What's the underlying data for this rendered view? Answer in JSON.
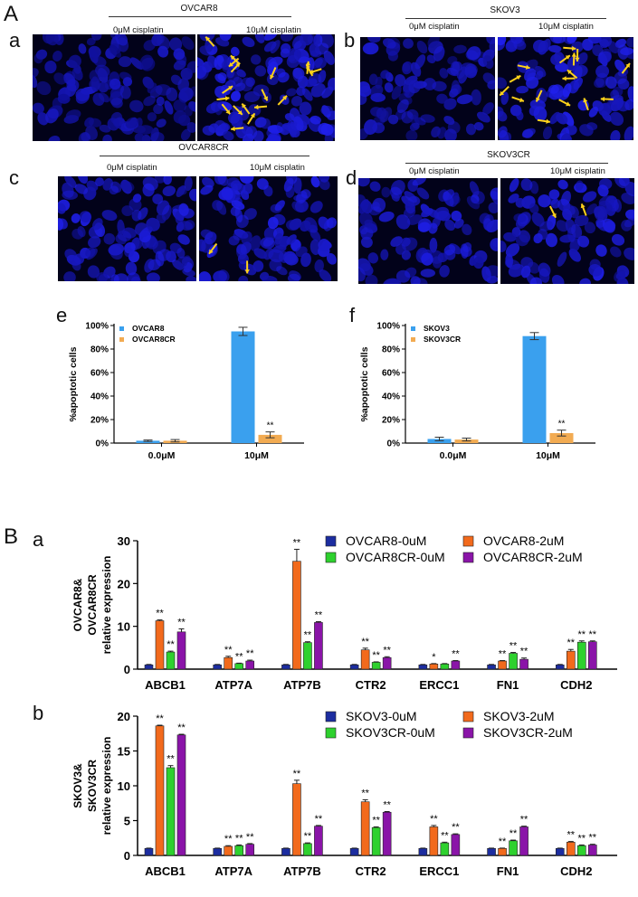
{
  "panel_labels": {
    "A": "A",
    "a": "a",
    "b": "b",
    "c": "c",
    "d": "d",
    "e": "e",
    "f": "f",
    "B": "B",
    "Ba": "a",
    "Bb": "b"
  },
  "micrographs": [
    {
      "id": "a",
      "title": "OVCAR8",
      "left_label": "0μM cisplatin",
      "right_label": "10μM cisplatin",
      "arrows_right": 18
    },
    {
      "id": "b",
      "title": "SKOV3",
      "left_label": "0μM cisplatin",
      "right_label": "10μM cisplatin",
      "arrows_right": 16
    },
    {
      "id": "c",
      "title": "OVCAR8CR",
      "left_label": "0μM cisplatin",
      "right_label": "10μM cisplatin",
      "arrows_right": 2
    },
    {
      "id": "d",
      "title": "SKOV3CR",
      "left_label": "0μM cisplatin",
      "right_label": "10μM cisplatin",
      "arrows_right": 2
    }
  ],
  "colors": {
    "nuclei": "#2a2ae0",
    "background": "#02021a",
    "arrow": "#ffd21a",
    "blue": "#3aa0ee",
    "orange": "#f2ab52",
    "navy": "#1c2da0",
    "deep_orange": "#f26a1c",
    "green": "#2ed12e",
    "purple": "#8a14a8"
  },
  "chart_data": [
    {
      "id": "e",
      "type": "bar",
      "categories": [
        "0.0μM",
        "10μM"
      ],
      "ylabel": "%apoptotic cells",
      "ylim": [
        0,
        100
      ],
      "yticks": [
        "0%",
        "20%",
        "40%",
        "60%",
        "80%",
        "100%"
      ],
      "series": [
        {
          "name": "OVCAR8",
          "values": [
            2,
            95
          ],
          "errors": [
            0.6,
            3.5
          ],
          "color": "#3aa0ee"
        },
        {
          "name": "OVCAR8CR",
          "values": [
            2,
            7
          ],
          "errors": [
            1,
            2.5
          ],
          "color": "#f2ab52"
        }
      ],
      "annotations": [
        {
          "category": 1,
          "series": 1,
          "text": "**"
        }
      ]
    },
    {
      "id": "f",
      "type": "bar",
      "categories": [
        "0.0μM",
        "10μM"
      ],
      "ylabel": "%apoptotic cells",
      "ylim": [
        0,
        100
      ],
      "yticks": [
        "0%",
        "20%",
        "40%",
        "60%",
        "80%",
        "100%"
      ],
      "series": [
        {
          "name": "SKOV3",
          "values": [
            3.5,
            91
          ],
          "errors": [
            1.5,
            3
          ],
          "color": "#3aa0ee"
        },
        {
          "name": "SKOV3CR",
          "values": [
            3,
            8.5
          ],
          "errors": [
            1.2,
            2.5
          ],
          "color": "#f2ab52"
        }
      ],
      "annotations": [
        {
          "category": 1,
          "series": 1,
          "text": "**"
        }
      ]
    },
    {
      "id": "Ba",
      "type": "bar",
      "categories": [
        "ABCB1",
        "ATP7A",
        "ATP7B",
        "CTR2",
        "ERCC1",
        "FN1",
        "CDH2"
      ],
      "ylabel": [
        "OVCAR8&",
        "OVCAR8CR",
        "relative expression"
      ],
      "ylim": [
        0,
        30
      ],
      "yticks": [
        "0",
        "10",
        "20",
        "30"
      ],
      "series": [
        {
          "name": "OVCAR8-0uM",
          "values": [
            1,
            1,
            1,
            1,
            1,
            1,
            1
          ],
          "errors": [
            0.1,
            0.1,
            0.1,
            0.1,
            0.1,
            0.1,
            0.1
          ],
          "color": "#1c2da0"
        },
        {
          "name": "OVCAR8-2uM",
          "values": [
            11.3,
            2.7,
            25.2,
            4.5,
            1.2,
            1.9,
            4.2
          ],
          "errors": [
            0.2,
            0.3,
            2.8,
            0.4,
            0.1,
            0.1,
            0.4
          ],
          "color": "#f26a1c"
        },
        {
          "name": "OVCAR8CR-0uM",
          "values": [
            4,
            1.3,
            6.2,
            1.6,
            1.2,
            3.7,
            6.3
          ],
          "errors": [
            0.2,
            0.1,
            0.2,
            0.1,
            0.1,
            0.2,
            0.3
          ],
          "color": "#2ed12e"
        },
        {
          "name": "OVCAR8CR-2uM",
          "values": [
            8.7,
            1.9,
            10.9,
            2.7,
            1.9,
            2.3,
            6.4
          ],
          "errors": [
            0.7,
            0.2,
            0.2,
            0.2,
            0.1,
            0.3,
            0.2
          ],
          "color": "#8a14a8"
        }
      ],
      "sig": [
        [
          "",
          "**",
          "**",
          "**"
        ],
        [
          "",
          "**",
          "**",
          "**"
        ],
        [
          "",
          "**",
          "**",
          "**"
        ],
        [
          "",
          "**",
          "**",
          "**"
        ],
        [
          "",
          "*",
          "",
          "**"
        ],
        [
          "",
          "**",
          "**",
          "**"
        ],
        [
          "",
          "**",
          "**",
          "**"
        ]
      ],
      "legend_order": [
        "OVCAR8-0uM",
        "OVCAR8-2uM",
        "OVCAR8CR-0uM",
        "OVCAR8CR-2uM"
      ]
    },
    {
      "id": "Bb",
      "type": "bar",
      "categories": [
        "ABCB1",
        "ATP7A",
        "ATP7B",
        "CTR2",
        "ERCC1",
        "FN1",
        "CDH2"
      ],
      "ylabel": [
        "SKOV3&",
        "SKOV3CR",
        "relative expression"
      ],
      "ylim": [
        0,
        20
      ],
      "yticks": [
        "0",
        "5",
        "10",
        "15",
        "20"
      ],
      "series": [
        {
          "name": "SKOV3-0uM",
          "values": [
            1,
            1,
            1,
            1,
            1,
            1,
            1
          ],
          "errors": [
            0.05,
            0.05,
            0.05,
            0.05,
            0.05,
            0.05,
            0.05
          ],
          "color": "#1c2da0"
        },
        {
          "name": "SKOV3-2uM",
          "values": [
            18.6,
            1.3,
            10.3,
            7.7,
            4.1,
            1.0,
            1.9
          ],
          "errors": [
            0.1,
            0.1,
            0.5,
            0.3,
            0.2,
            0.05,
            0.1
          ],
          "color": "#f26a1c"
        },
        {
          "name": "SKOV3CR-0uM",
          "values": [
            12.6,
            1.4,
            1.7,
            4.0,
            1.8,
            2.1,
            1.4
          ],
          "errors": [
            0.3,
            0.1,
            0.1,
            0.1,
            0.1,
            0.1,
            0.1
          ],
          "color": "#2ed12e"
        },
        {
          "name": "SKOV3CR-2uM",
          "values": [
            17.3,
            1.6,
            4.2,
            6.2,
            3.0,
            4.1,
            1.5
          ],
          "errors": [
            0.1,
            0.1,
            0.1,
            0.1,
            0.1,
            0.1,
            0.1
          ],
          "color": "#8a14a8"
        }
      ],
      "sig": [
        [
          "",
          "**",
          "**",
          "**"
        ],
        [
          "",
          "**",
          "**",
          "**"
        ],
        [
          "",
          "**",
          "**",
          "**"
        ],
        [
          "",
          "**",
          "**",
          "**"
        ],
        [
          "",
          "**",
          "**",
          "**"
        ],
        [
          "",
          "**",
          "**",
          "**"
        ],
        [
          "",
          "**",
          "**",
          "**"
        ]
      ],
      "legend_order": [
        "SKOV3-0uM",
        "SKOV3-2uM",
        "SKOV3CR-0uM",
        "SKOV3CR-2uM"
      ]
    }
  ]
}
